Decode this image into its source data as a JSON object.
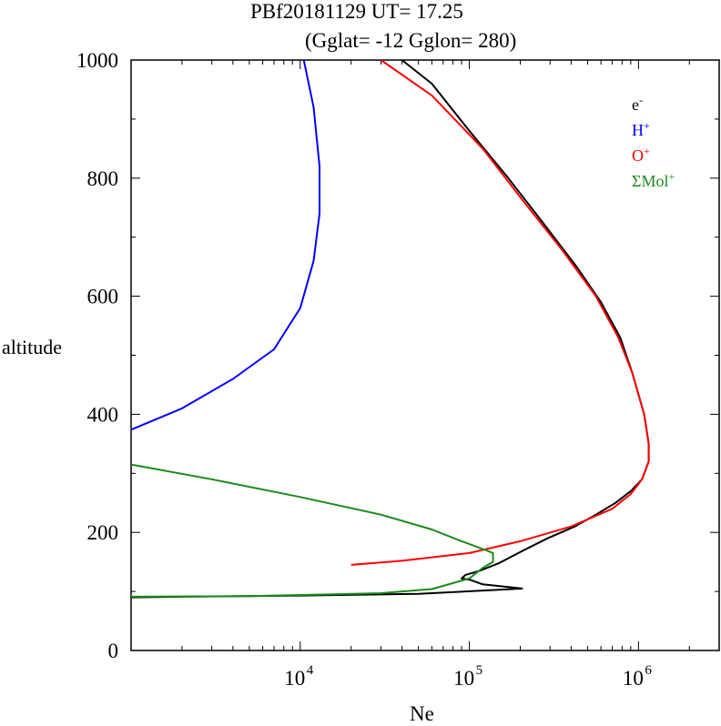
{
  "title_line1": "PBf20181129   UT=  17.25",
  "title_line2": "(Gglat= -12   Gglon=  280)",
  "chart_data": {
    "type": "line",
    "xlabel": "Ne",
    "ylabel": "altitude",
    "xscale": "log",
    "xlim": [
      1000,
      3000000
    ],
    "ylim": [
      0,
      1000
    ],
    "x_ticks": [
      {
        "base": "10",
        "exp": "4",
        "value": 10000
      },
      {
        "base": "10",
        "exp": "5",
        "value": 100000
      },
      {
        "base": "10",
        "exp": "6",
        "value": 1000000
      }
    ],
    "y_ticks": [
      "0",
      "200",
      "400",
      "600",
      "800",
      "1000"
    ],
    "legend_position": "top-right",
    "series": [
      {
        "name": "e",
        "sup": "-",
        "color": "#000000",
        "points": [
          [
            1000,
            90
          ],
          [
            2000,
            91
          ],
          [
            10000,
            93
          ],
          [
            50000,
            96
          ],
          [
            150000,
            103
          ],
          [
            205000,
            105
          ],
          [
            120000,
            112
          ],
          [
            100000,
            120
          ],
          [
            90000,
            122
          ],
          [
            95000,
            128
          ],
          [
            115000,
            135
          ],
          [
            150000,
            148
          ],
          [
            210000,
            170
          ],
          [
            290000,
            190
          ],
          [
            420000,
            210
          ],
          [
            560000,
            230
          ],
          [
            730000,
            250
          ],
          [
            900000,
            270
          ],
          [
            1050000,
            290
          ],
          [
            1150000,
            320
          ],
          [
            1150000,
            350
          ],
          [
            1080000,
            400
          ],
          [
            920000,
            470
          ],
          [
            780000,
            530
          ],
          [
            600000,
            590
          ],
          [
            430000,
            650
          ],
          [
            280000,
            720
          ],
          [
            170000,
            800
          ],
          [
            100000,
            880
          ],
          [
            60000,
            960
          ],
          [
            40000,
            1000
          ]
        ]
      },
      {
        "name": "H",
        "sup": "+",
        "color": "#0000ff",
        "points": [
          [
            1000,
            374
          ],
          [
            2000,
            410
          ],
          [
            4000,
            460
          ],
          [
            7000,
            510
          ],
          [
            10000,
            580
          ],
          [
            12000,
            660
          ],
          [
            13000,
            740
          ],
          [
            13000,
            820
          ],
          [
            12000,
            920
          ],
          [
            10500,
            1000
          ]
        ]
      },
      {
        "name": "O",
        "sup": "+",
        "color": "#ff0000",
        "points": [
          [
            20000,
            145
          ],
          [
            40000,
            152
          ],
          [
            100000,
            165
          ],
          [
            200000,
            185
          ],
          [
            400000,
            210
          ],
          [
            700000,
            240
          ],
          [
            900000,
            265
          ],
          [
            1050000,
            290
          ],
          [
            1150000,
            320
          ],
          [
            1150000,
            350
          ],
          [
            1080000,
            400
          ],
          [
            920000,
            470
          ],
          [
            760000,
            530
          ],
          [
            560000,
            600
          ],
          [
            350000,
            680
          ],
          [
            210000,
            760
          ],
          [
            120000,
            850
          ],
          [
            60000,
            940
          ],
          [
            30000,
            1000
          ]
        ]
      },
      {
        "name": "ΣMol",
        "sup": "+",
        "color": "#1a8a1a",
        "points": [
          [
            1000,
            315
          ],
          [
            3000,
            290
          ],
          [
            10000,
            260
          ],
          [
            30000,
            230
          ],
          [
            60000,
            205
          ],
          [
            90000,
            185
          ],
          [
            125000,
            170
          ],
          [
            138000,
            165
          ],
          [
            138000,
            150
          ],
          [
            120000,
            140
          ],
          [
            100000,
            122
          ],
          [
            60000,
            104
          ],
          [
            30000,
            97
          ],
          [
            5000,
            92
          ],
          [
            1000,
            91
          ]
        ]
      }
    ]
  }
}
